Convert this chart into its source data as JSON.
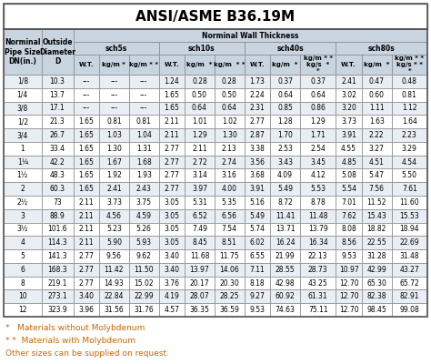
{
  "title": "ANSI/ASME B36.19M",
  "subtitle": "Norminal Wall Thickness",
  "col_groups": [
    "sch5s",
    "sch10s",
    "sch40s",
    "sch80s"
  ],
  "col_headers": [
    "W.T.",
    "kg/m *",
    "kg/m * *",
    "W.T.",
    "kg/m  *",
    "kg/m  * *",
    "W.T.",
    "kg/m  *",
    "kg/m * *\nkg/s  *\n*",
    "W.T.",
    "kg/m  *",
    "kg/m * *\nkg/s * *\n*"
  ],
  "rows": [
    [
      "1/8",
      "10.3",
      "---",
      "---",
      "---",
      "1.24",
      "0.28",
      "0.28",
      "1.73",
      "0.37",
      "0.37",
      "2.41",
      "0.47",
      "0.48"
    ],
    [
      "1/4",
      "13.7",
      "---",
      "---",
      "---",
      "1.65",
      "0.50",
      "0.50",
      "2.24",
      "0.64",
      "0.64",
      "3.02",
      "0.60",
      "0.81"
    ],
    [
      "3/8",
      "17.1",
      "---",
      "---",
      "---",
      "1.65",
      "0.64",
      "0.64",
      "2.31",
      "0.85",
      "0.86",
      "3.20",
      "1.11",
      "1.12"
    ],
    [
      "1/2",
      "21.3",
      "1.65",
      "0.81",
      "0.81",
      "2.11",
      "1.01",
      "1.02",
      "2.77",
      "1.28",
      "1.29",
      "3.73",
      "1.63",
      "1.64"
    ],
    [
      "3/4",
      "26.7",
      "1.65",
      "1.03",
      "1.04",
      "2.11",
      "1.29",
      "1.30",
      "2.87",
      "1.70",
      "1.71",
      "3.91",
      "2.22",
      "2.23"
    ],
    [
      "1",
      "33.4",
      "1.65",
      "1.30",
      "1.31",
      "2.77",
      "2.11",
      "2.13",
      "3.38",
      "2.53",
      "2.54",
      "4.55",
      "3.27",
      "3.29"
    ],
    [
      "1¼",
      "42.2",
      "1.65",
      "1.67",
      "1.68",
      "2.77",
      "2.72",
      "2.74",
      "3.56",
      "3.43",
      "3.45",
      "4.85",
      "4.51",
      "4.54"
    ],
    [
      "1½",
      "48.3",
      "1.65",
      "1.92",
      "1.93",
      "2.77",
      "3.14",
      "3.16",
      "3.68",
      "4.09",
      "4.12",
      "5.08",
      "5.47",
      "5.50"
    ],
    [
      "2",
      "60.3",
      "1.65",
      "2.41",
      "2.43",
      "2.77",
      "3.97",
      "4.00",
      "3.91",
      "5.49",
      "5.53",
      "5.54",
      "7.56",
      "7.61"
    ],
    [
      "2½",
      "73",
      "2.11",
      "3.73",
      "3.75",
      "3.05",
      "5.31",
      "5.35",
      "5.16",
      "8.72",
      "8.78",
      "7.01",
      "11.52",
      "11.60"
    ],
    [
      "3",
      "88.9",
      "2.11",
      "4.56",
      "4.59",
      "3.05",
      "6.52",
      "6.56",
      "5.49",
      "11.41",
      "11.48",
      "7.62",
      "15.43",
      "15.53"
    ],
    [
      "3½",
      "101.6",
      "2.11",
      "5.23",
      "5.26",
      "3.05",
      "7.49",
      "7.54",
      "5.74",
      "13.71",
      "13.79",
      "8.08",
      "18.82",
      "18.94"
    ],
    [
      "4",
      "114.3",
      "2.11",
      "5.90",
      "5.93",
      "3.05",
      "8.45",
      "8.51",
      "6.02",
      "16.24",
      "16.34",
      "8.56",
      "22.55",
      "22.69"
    ],
    [
      "5",
      "141.3",
      "2.77",
      "9.56",
      "9.62",
      "3.40",
      "11.68",
      "11.75",
      "6.55",
      "21.99",
      "22.13",
      "9.53",
      "31.28",
      "31.48"
    ],
    [
      "6",
      "168.3",
      "2.77",
      "11.42",
      "11.50",
      "3.40",
      "13.97",
      "14.06",
      "7.11",
      "28.55",
      "28.73",
      "10.97",
      "42.99",
      "43.27"
    ],
    [
      "8",
      "219.1",
      "2.77",
      "14.93",
      "15.02",
      "3.76",
      "20.17",
      "20.30",
      "8.18",
      "42.98",
      "43.25",
      "12.70",
      "65.30",
      "65.72"
    ],
    [
      "10",
      "273.1",
      "3.40",
      "22.84",
      "22.99",
      "4.19",
      "28.07",
      "28.25",
      "9.27",
      "60.92",
      "61.31",
      "12.70",
      "82.38",
      "82.91"
    ],
    [
      "12",
      "323.9",
      "3.96",
      "31.56",
      "31.76",
      "4.57",
      "36.35",
      "36.59",
      "9.53",
      "74.63",
      "75.11",
      "12.70",
      "98.45",
      "99.08"
    ]
  ],
  "footnotes": [
    "*   Materials without Molybdenum",
    "* *  Materials with Molybdenum",
    "Other sizes can be supplied on request."
  ],
  "header_bg": "#c8d4e0",
  "row_bg_even": "#e8eef4",
  "row_bg_odd": "#ffffff",
  "border_color": "#888888",
  "title_fontsize": 11,
  "cell_fontsize": 5.5,
  "header_fontsize": 5.5,
  "footnote_color": "#cc6600"
}
